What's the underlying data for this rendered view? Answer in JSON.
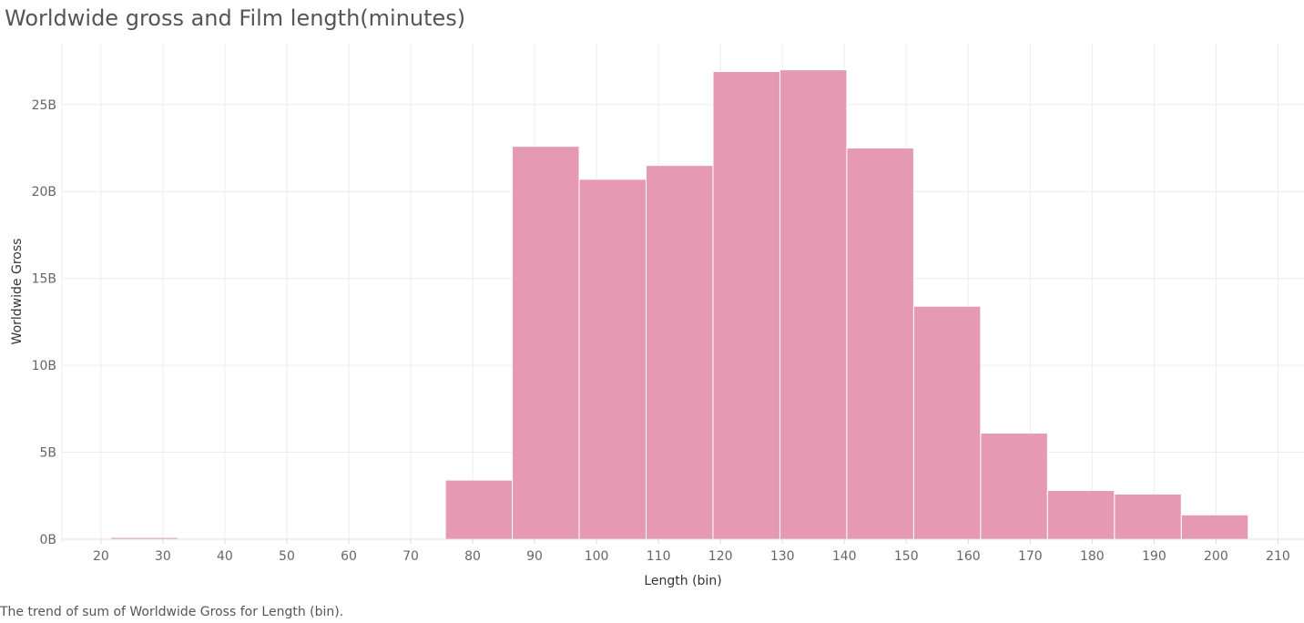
{
  "title": "Worldwide gross and Film length(minutes)",
  "caption": "The trend of sum of Worldwide Gross for Length (bin).",
  "colors": {
    "bar": "#e699b3",
    "grid": "#ececec",
    "bar_stroke": "#ffffff"
  },
  "chart_data": {
    "type": "bar",
    "title": "Worldwide gross and Film length(minutes)",
    "xlabel": "Length (bin)",
    "ylabel": "Worldwide Gross",
    "bin_width": 10.8,
    "bin_start": 21.6,
    "bins": [
      {
        "start": 21.6,
        "value": 0.1
      },
      {
        "start": 75.6,
        "value": 3.4
      },
      {
        "start": 86.4,
        "value": 22.6
      },
      {
        "start": 97.2,
        "value": 20.7
      },
      {
        "start": 108.0,
        "value": 21.5
      },
      {
        "start": 118.8,
        "value": 26.9
      },
      {
        "start": 129.6,
        "value": 27.0
      },
      {
        "start": 140.4,
        "value": 22.5
      },
      {
        "start": 151.2,
        "value": 13.4
      },
      {
        "start": 162.0,
        "value": 6.1
      },
      {
        "start": 172.8,
        "value": 2.8
      },
      {
        "start": 183.6,
        "value": 2.6
      },
      {
        "start": 194.4,
        "value": 1.4
      }
    ],
    "value_unit": "B",
    "xlim": [
      13.7,
      214.2
    ],
    "ylim": [
      0,
      28.5
    ],
    "x_ticks": [
      20,
      30,
      40,
      50,
      60,
      70,
      80,
      90,
      100,
      110,
      120,
      130,
      140,
      150,
      160,
      170,
      180,
      190,
      200,
      210
    ],
    "y_ticks": [
      0,
      5,
      10,
      15,
      20,
      25
    ],
    "y_tick_labels": [
      "0B",
      "5B",
      "10B",
      "15B",
      "20B",
      "25B"
    ],
    "grid": true
  }
}
